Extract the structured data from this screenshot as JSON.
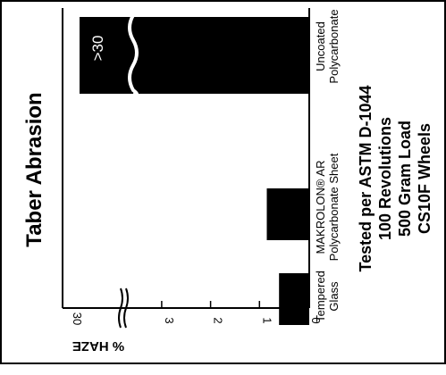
{
  "chart_data": {
    "type": "bar",
    "orientation": "vertical, rotated 90° clockwise",
    "title": "Taber Abrasion",
    "ylabel": "% HAZE",
    "categories": [
      [
        "Tempered",
        "Glass"
      ],
      [
        "MAKROLON® AR",
        "Polycarbonate Sheet"
      ],
      [
        "Uncoated",
        "Polycarbonate"
      ]
    ],
    "values": [
      0.6,
      0.85,
      30
    ],
    "value_labels": [
      "",
      "",
      ">30"
    ],
    "ytick_labels": [
      "0",
      "1",
      "2",
      "3",
      "30"
    ],
    "axis_break": "between 3 and 30",
    "notes": [
      "Tested per ASTM D-1044",
      "100 Revolutions",
      "500 Gram Load",
      "CS10F Wheels"
    ],
    "colors": {
      "bar": "#000000",
      "background": "#ffffff"
    }
  }
}
